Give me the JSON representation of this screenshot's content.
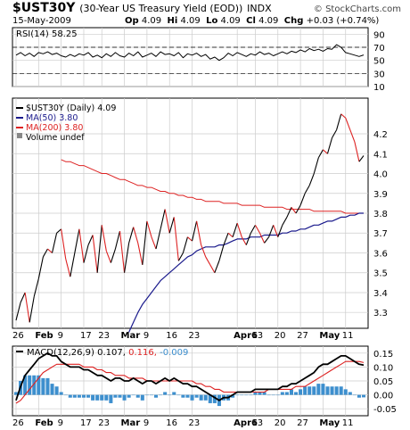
{
  "header": {
    "symbol": "$UST30Y",
    "name": "(30-Year US Treasury Yield (EOD))",
    "exchange": "INDX",
    "date": "15-May-2009",
    "source": "© StockCharts.com",
    "ohlc": [
      {
        "label": "Op",
        "value": "4.09"
      },
      {
        "label": "Hi",
        "value": "4.09"
      },
      {
        "label": "Lo",
        "value": "4.09"
      },
      {
        "label": "Cl",
        "value": "4.09"
      },
      {
        "label": "Chg",
        "value": "+0.03 (+0.74%)"
      }
    ]
  },
  "colors": {
    "price": "#000000",
    "ma50": "#1a1a8c",
    "ma200": "#dd2222",
    "macd": "#000000",
    "signal": "#dd2222",
    "histogram": "#3d8fce",
    "grid": "#cccccc"
  },
  "chart_data": [
    {
      "type": "line",
      "title": "RSI(14) 58.25",
      "x": [
        "Jan26",
        "Jan27",
        "Jan28",
        "Jan29",
        "Jan30",
        "Feb2",
        "Feb3",
        "Feb4",
        "Feb5",
        "Feb6",
        "Feb9",
        "Feb10",
        "Feb11",
        "Feb12",
        "Feb13",
        "Feb17",
        "Feb18",
        "Feb19",
        "Feb20",
        "Feb23",
        "Feb24",
        "Feb25",
        "Feb26",
        "Feb27",
        "Mar2",
        "Mar3",
        "Mar4",
        "Mar5",
        "Mar6",
        "Mar9",
        "Mar10",
        "Mar11",
        "Mar12",
        "Mar13",
        "Mar16",
        "Mar17",
        "Mar18",
        "Mar19",
        "Mar20",
        "Mar23",
        "Mar24",
        "Mar25",
        "Mar26",
        "Mar27",
        "Mar30",
        "Mar31",
        "Apr1",
        "Apr2",
        "Apr3",
        "Apr6",
        "Apr7",
        "Apr8",
        "Apr9",
        "Apr13",
        "Apr14",
        "Apr15",
        "Apr16",
        "Apr17",
        "Apr20",
        "Apr21",
        "Apr22",
        "Apr23",
        "Apr24",
        "Apr27",
        "Apr28",
        "Apr29",
        "Apr30",
        "May1",
        "May4",
        "May5",
        "May6",
        "May7",
        "May8",
        "May11",
        "May12",
        "May13",
        "May14",
        "May15"
      ],
      "values": [
        58,
        62,
        57,
        61,
        56,
        62,
        60,
        63,
        59,
        61,
        57,
        55,
        59,
        56,
        60,
        58,
        62,
        55,
        58,
        54,
        60,
        56,
        62,
        57,
        55,
        61,
        57,
        63,
        55,
        58,
        61,
        56,
        63,
        59,
        60,
        57,
        62,
        54,
        60,
        58,
        61,
        56,
        59,
        52,
        55,
        50,
        54,
        61,
        57,
        62,
        59,
        56,
        60,
        58,
        63,
        59,
        61,
        57,
        60,
        63,
        60,
        64,
        62,
        66,
        63,
        68,
        65,
        67,
        64,
        68,
        67,
        74,
        70,
        62,
        60,
        58,
        56,
        58.25
      ],
      "ylim": [
        10,
        100
      ],
      "yticks": [
        10,
        30,
        50,
        70,
        90
      ],
      "reference_lines": [
        30,
        70
      ]
    },
    {
      "type": "line",
      "title": "$UST30Y (Daily) 4.09",
      "x": [
        "Jan26",
        "Jan27",
        "Jan28",
        "Jan29",
        "Jan30",
        "Feb2",
        "Feb3",
        "Feb4",
        "Feb5",
        "Feb6",
        "Feb9",
        "Feb10",
        "Feb11",
        "Feb12",
        "Feb13",
        "Feb17",
        "Feb18",
        "Feb19",
        "Feb20",
        "Feb23",
        "Feb24",
        "Feb25",
        "Feb26",
        "Feb27",
        "Mar2",
        "Mar3",
        "Mar4",
        "Mar5",
        "Mar6",
        "Mar9",
        "Mar10",
        "Mar11",
        "Mar12",
        "Mar13",
        "Mar16",
        "Mar17",
        "Mar18",
        "Mar19",
        "Mar20",
        "Mar23",
        "Mar24",
        "Mar25",
        "Mar26",
        "Mar27",
        "Mar30",
        "Mar31",
        "Apr1",
        "Apr2",
        "Apr3",
        "Apr6",
        "Apr7",
        "Apr8",
        "Apr9",
        "Apr13",
        "Apr14",
        "Apr15",
        "Apr16",
        "Apr17",
        "Apr20",
        "Apr21",
        "Apr22",
        "Apr23",
        "Apr24",
        "Apr27",
        "Apr28",
        "Apr29",
        "Apr30",
        "May1",
        "May4",
        "May5",
        "May6",
        "May7",
        "May8",
        "May11",
        "May12",
        "May13",
        "May14",
        "May15"
      ],
      "series": [
        {
          "name": "$UST30Y (Daily) 4.09",
          "values": [
            3.26,
            3.35,
            3.4,
            3.25,
            3.38,
            3.47,
            3.58,
            3.62,
            3.6,
            3.7,
            3.72,
            3.57,
            3.48,
            3.6,
            3.72,
            3.55,
            3.64,
            3.69,
            3.5,
            3.74,
            3.61,
            3.55,
            3.62,
            3.71,
            3.5,
            3.65,
            3.73,
            3.65,
            3.54,
            3.76,
            3.68,
            3.62,
            3.72,
            3.82,
            3.7,
            3.78,
            3.56,
            3.6,
            3.68,
            3.66,
            3.76,
            3.64,
            3.58,
            3.54,
            3.5,
            3.56,
            3.64,
            3.7,
            3.68,
            3.75,
            3.68,
            3.64,
            3.7,
            3.74,
            3.7,
            3.65,
            3.68,
            3.74,
            3.68,
            3.74,
            3.78,
            3.83,
            3.8,
            3.84,
            3.9,
            3.94,
            4.0,
            4.08,
            4.12,
            4.1,
            4.18,
            4.22,
            4.3,
            4.28,
            4.22,
            4.16,
            4.06,
            4.09
          ]
        },
        {
          "name": "MA(50) 3.80",
          "values": [
            null,
            null,
            null,
            null,
            null,
            null,
            null,
            null,
            null,
            null,
            null,
            null,
            null,
            null,
            null,
            null,
            null,
            null,
            null,
            null,
            null,
            null,
            null,
            null,
            null,
            3.2,
            3.25,
            3.3,
            3.34,
            3.37,
            3.4,
            3.43,
            3.46,
            3.48,
            3.5,
            3.52,
            3.54,
            3.56,
            3.58,
            3.59,
            3.61,
            3.62,
            3.63,
            3.63,
            3.63,
            3.64,
            3.64,
            3.65,
            3.66,
            3.67,
            3.67,
            3.67,
            3.68,
            3.68,
            3.68,
            3.69,
            3.69,
            3.69,
            3.69,
            3.7,
            3.7,
            3.71,
            3.71,
            3.72,
            3.72,
            3.73,
            3.74,
            3.74,
            3.75,
            3.76,
            3.76,
            3.77,
            3.78,
            3.78,
            3.79,
            3.79,
            3.8,
            3.8
          ]
        },
        {
          "name": "MA(200) 3.80",
          "values": [
            null,
            null,
            null,
            null,
            null,
            null,
            null,
            null,
            null,
            null,
            4.07,
            4.06,
            4.06,
            4.05,
            4.04,
            4.04,
            4.03,
            4.02,
            4.01,
            4.0,
            4.0,
            3.99,
            3.98,
            3.97,
            3.97,
            3.96,
            3.95,
            3.94,
            3.94,
            3.93,
            3.93,
            3.92,
            3.91,
            3.91,
            3.9,
            3.9,
            3.89,
            3.89,
            3.88,
            3.88,
            3.87,
            3.87,
            3.86,
            3.86,
            3.86,
            3.86,
            3.85,
            3.85,
            3.85,
            3.85,
            3.84,
            3.84,
            3.84,
            3.84,
            3.84,
            3.83,
            3.83,
            3.83,
            3.83,
            3.83,
            3.82,
            3.82,
            3.82,
            3.82,
            3.82,
            3.82,
            3.81,
            3.81,
            3.81,
            3.81,
            3.81,
            3.81,
            3.81,
            3.8,
            3.8,
            3.8,
            3.8,
            3.8
          ]
        }
      ],
      "legend": [
        "$UST30Y (Daily) 4.09",
        "MA(50) 3.80",
        "MA(200) 3.80",
        "Volume undef"
      ],
      "legend_placement": "top-left",
      "ylim": [
        3.22,
        4.38
      ],
      "yticks": [
        3.3,
        3.4,
        3.5,
        3.6,
        3.7,
        3.8,
        3.9,
        4.0,
        4.1,
        4.2
      ],
      "xticks": [
        "26",
        "Feb",
        "9",
        "17",
        "23",
        "Mar",
        "9",
        "16",
        "23",
        "Apr6",
        "13",
        "20",
        "27",
        "May",
        "11"
      ],
      "grid": true
    },
    {
      "type": "line",
      "title": "MACD(12,26,9) 0.107, 0.116, -0.009",
      "x": [
        "Jan26",
        "Jan27",
        "Jan28",
        "Jan29",
        "Jan30",
        "Feb2",
        "Feb3",
        "Feb4",
        "Feb5",
        "Feb6",
        "Feb9",
        "Feb10",
        "Feb11",
        "Feb12",
        "Feb13",
        "Feb17",
        "Feb18",
        "Feb19",
        "Feb20",
        "Feb23",
        "Feb24",
        "Feb25",
        "Feb26",
        "Feb27",
        "Mar2",
        "Mar3",
        "Mar4",
        "Mar5",
        "Mar6",
        "Mar9",
        "Mar10",
        "Mar11",
        "Mar12",
        "Mar13",
        "Mar16",
        "Mar17",
        "Mar18",
        "Mar19",
        "Mar20",
        "Mar23",
        "Mar24",
        "Mar25",
        "Mar26",
        "Mar27",
        "Mar30",
        "Mar31",
        "Apr1",
        "Apr2",
        "Apr3",
        "Apr6",
        "Apr7",
        "Apr8",
        "Apr9",
        "Apr13",
        "Apr14",
        "Apr15",
        "Apr16",
        "Apr17",
        "Apr20",
        "Apr21",
        "Apr22",
        "Apr23",
        "Apr24",
        "Apr27",
        "Apr28",
        "Apr29",
        "Apr30",
        "May1",
        "May4",
        "May5",
        "May6",
        "May7",
        "May8",
        "May11",
        "May12",
        "May13",
        "May14",
        "May15"
      ],
      "series": [
        {
          "name": "MACD",
          "values": [
            -0.02,
            0.03,
            0.07,
            0.09,
            0.11,
            0.13,
            0.14,
            0.15,
            0.14,
            0.14,
            0.12,
            0.11,
            0.1,
            0.1,
            0.1,
            0.09,
            0.09,
            0.08,
            0.07,
            0.07,
            0.06,
            0.05,
            0.06,
            0.06,
            0.05,
            0.05,
            0.06,
            0.05,
            0.04,
            0.05,
            0.05,
            0.04,
            0.05,
            0.06,
            0.05,
            0.06,
            0.05,
            0.04,
            0.04,
            0.03,
            0.03,
            0.02,
            0.01,
            0.0,
            -0.01,
            -0.02,
            -0.01,
            -0.01,
            0.0,
            0.01,
            0.01,
            0.01,
            0.01,
            0.02,
            0.02,
            0.02,
            0.02,
            0.02,
            0.02,
            0.03,
            0.03,
            0.04,
            0.04,
            0.05,
            0.06,
            0.07,
            0.08,
            0.1,
            0.11,
            0.11,
            0.12,
            0.13,
            0.14,
            0.14,
            0.13,
            0.12,
            0.11,
            0.107
          ]
        },
        {
          "name": "Signal",
          "values": [
            -0.03,
            -0.02,
            0.0,
            0.02,
            0.04,
            0.06,
            0.08,
            0.09,
            0.1,
            0.11,
            0.11,
            0.11,
            0.11,
            0.11,
            0.11,
            0.1,
            0.1,
            0.1,
            0.09,
            0.09,
            0.08,
            0.08,
            0.07,
            0.07,
            0.07,
            0.06,
            0.06,
            0.06,
            0.06,
            0.05,
            0.05,
            0.05,
            0.05,
            0.05,
            0.05,
            0.05,
            0.05,
            0.05,
            0.05,
            0.05,
            0.04,
            0.04,
            0.03,
            0.03,
            0.02,
            0.02,
            0.01,
            0.01,
            0.01,
            0.01,
            0.01,
            0.01,
            0.01,
            0.01,
            0.01,
            0.01,
            0.02,
            0.02,
            0.02,
            0.02,
            0.02,
            0.02,
            0.03,
            0.03,
            0.03,
            0.04,
            0.05,
            0.06,
            0.07,
            0.08,
            0.09,
            0.1,
            0.11,
            0.12,
            0.12,
            0.12,
            0.12,
            0.116
          ]
        },
        {
          "name": "Histogram",
          "values": [
            0.01,
            0.05,
            0.07,
            0.07,
            0.07,
            0.07,
            0.06,
            0.06,
            0.04,
            0.03,
            0.01,
            0.0,
            -0.01,
            -0.01,
            -0.01,
            -0.01,
            -0.01,
            -0.02,
            -0.02,
            -0.02,
            -0.02,
            -0.03,
            -0.01,
            -0.01,
            -0.02,
            -0.01,
            0.0,
            -0.01,
            -0.02,
            0.0,
            0.0,
            -0.01,
            0.0,
            0.01,
            0.0,
            0.01,
            0.0,
            -0.01,
            -0.01,
            -0.02,
            -0.01,
            -0.02,
            -0.02,
            -0.03,
            -0.03,
            -0.04,
            -0.02,
            -0.02,
            -0.01,
            0.0,
            0.0,
            0.0,
            0.0,
            0.01,
            0.01,
            0.01,
            0.0,
            0.0,
            0.0,
            0.01,
            0.01,
            0.02,
            0.01,
            0.02,
            0.03,
            0.03,
            0.03,
            0.04,
            0.04,
            0.03,
            0.03,
            0.03,
            0.03,
            0.02,
            0.01,
            0.0,
            -0.01,
            -0.009
          ]
        }
      ],
      "ylim": [
        -0.075,
        0.175
      ],
      "yticks": [
        -0.05,
        0.0,
        0.05,
        0.1,
        0.15
      ],
      "xticks": [
        "26",
        "Feb",
        "9",
        "17",
        "23",
        "Mar",
        "9",
        "16",
        "23",
        "Apr6",
        "13",
        "20",
        "27",
        "May",
        "11"
      ],
      "grid": true
    }
  ]
}
